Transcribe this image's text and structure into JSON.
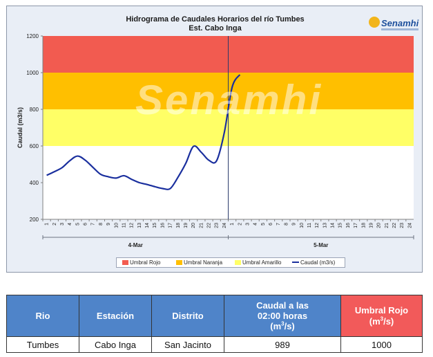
{
  "chart_data": {
    "type": "line",
    "title": "Hidrograma de Caudales Horarios del río Tumbes",
    "subtitle": "Est. Cabo Inga",
    "ylabel": "Caudal  (m3/s)",
    "ylim": [
      200,
      1200
    ],
    "yticks": [
      200,
      400,
      600,
      800,
      1000,
      1200
    ],
    "x_hour_ticks": [
      "1",
      "2",
      "3",
      "4",
      "5",
      "6",
      "7",
      "8",
      "9",
      "10",
      "11",
      "12",
      "13",
      "14",
      "15",
      "16",
      "17",
      "18",
      "19",
      "20",
      "21",
      "22",
      "23",
      "24",
      "1",
      "2",
      "3",
      "4",
      "5",
      "6",
      "7",
      "8",
      "9",
      "10",
      "11",
      "12",
      "13",
      "14",
      "15",
      "16",
      "17",
      "18",
      "19",
      "20",
      "21",
      "22",
      "23",
      "24"
    ],
    "day_labels": [
      "4-Mar",
      "5-Mar"
    ],
    "thresholds": [
      {
        "name": "Umbral Rojo",
        "from": 1000,
        "to": 1200,
        "color": "#f25b50"
      },
      {
        "name": "Umbral Naranja",
        "from": 800,
        "to": 1000,
        "color": "#ffbf00"
      },
      {
        "name": "Umbral Amarillo",
        "from": 600,
        "to": 800,
        "color": "#ffff66"
      }
    ],
    "series": [
      {
        "name": "Caudal (m3/s)",
        "color": "#1a2f9e",
        "hours": [
          1,
          2,
          3,
          4,
          5,
          6,
          7,
          8,
          9,
          10,
          11,
          12,
          13,
          14,
          15,
          16,
          17,
          18,
          19,
          20,
          21,
          22,
          23,
          24,
          25,
          26
        ],
        "values": [
          440,
          460,
          482,
          520,
          545,
          522,
          483,
          445,
          432,
          425,
          438,
          418,
          400,
          390,
          378,
          368,
          368,
          430,
          505,
          598,
          566,
          522,
          520,
          675,
          920,
          989
        ]
      }
    ],
    "grid": false,
    "legend_position": "bottom"
  },
  "logo": {
    "text": "Senamhi"
  },
  "watermark": "Senamhi",
  "table": {
    "headers": {
      "rio": "Rio",
      "estacion": "Estación",
      "distrito": "Distrito",
      "caudal_line1": "Caudal a las",
      "caudal_line2": "02:00 horas",
      "caudal_unit_pre": "(m",
      "caudal_unit_sup": "3",
      "caudal_unit_post": "/s)",
      "umbral_line1": "Umbral Rojo",
      "umbral_unit_pre": "(m",
      "umbral_unit_sup": "3",
      "umbral_unit_post": "/s)"
    },
    "row": {
      "rio": "Tumbes",
      "estacion": "Cabo Inga",
      "distrito": "San Jacinto",
      "caudal": "989",
      "umbral": "1000"
    }
  }
}
